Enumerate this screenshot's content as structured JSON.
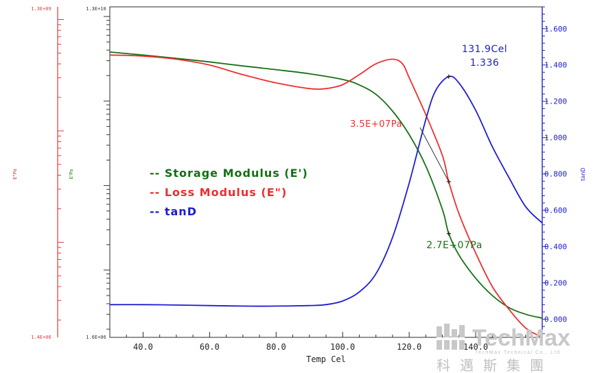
{
  "colors": {
    "storage": "#137113",
    "loss": "#ee2d2d",
    "tan": "#1b1bd0",
    "storage_axis": "#1a8a1a",
    "loss_axis": "#e03a3a",
    "tan_axis": "#2020c8"
  },
  "chart_data": {
    "type": "line",
    "xlabel": "Temp Cel",
    "xlim": [
      30,
      160
    ],
    "x_ticks": [
      "40.0",
      "60.0",
      "80.0",
      "100.0",
      "120.0",
      "140.0"
    ],
    "axes": {
      "storage": {
        "label": "E'Pa",
        "top": "1.3E+10",
        "bottom": "1.6E+06",
        "scale": "log",
        "ylim": [
          1600000,
          13000000000
        ]
      },
      "loss": {
        "label": "E\"Pa",
        "top": "1.3E+09",
        "bottom": "1.4E+06",
        "scale": "log",
        "ylim": [
          1400000,
          1300000000
        ]
      },
      "tan": {
        "label": "tanD",
        "ylim": [
          -0.1,
          1.72
        ],
        "ticks": [
          "0.000",
          "0.200",
          "0.400",
          "0.600",
          "0.800",
          "1.000",
          "1.200",
          "1.400",
          "1.600"
        ]
      }
    },
    "legend": {
      "position": "left-middle",
      "items": [
        {
          "key": "storage",
          "text": "-- Storage Modulus (E')"
        },
        {
          "key": "loss",
          "text": "-- Loss Modulus (E\")"
        },
        {
          "key": "tan",
          "text": "-- tanD"
        }
      ]
    },
    "series": [
      {
        "name": "Storage Modulus (E')",
        "axis": "storage",
        "x": [
          30,
          40,
          50,
          60,
          70,
          80,
          90,
          100,
          105,
          110,
          115,
          120,
          125,
          130,
          131.9,
          135,
          140,
          145,
          150,
          155,
          160
        ],
        "y": [
          3800000000,
          3500000000,
          3200000000,
          2900000000,
          2600000000,
          2350000000,
          2100000000,
          1800000000,
          1550000000,
          1200000000,
          760000000,
          400000000,
          170000000,
          52000000,
          27000000,
          15000000,
          8000000,
          5000000,
          3600000,
          3000000,
          2700000
        ]
      },
      {
        "name": "Loss Modulus (E\")",
        "axis": "loss",
        "x": [
          30,
          40,
          50,
          60,
          70,
          80,
          90,
          95,
          100,
          105,
          110,
          115,
          118,
          120,
          125,
          130,
          131.9,
          135,
          140,
          145,
          150,
          155,
          160
        ],
        "y": [
          480000000,
          470000000,
          440000000,
          390000000,
          320000000,
          270000000,
          240000000,
          240000000,
          260000000,
          320000000,
          400000000,
          440000000,
          400000000,
          300000000,
          140000000,
          60000000,
          35000000,
          18000000,
          8000000,
          4000000,
          2500000,
          1700000,
          1400000
        ]
      },
      {
        "name": "tanD",
        "axis": "tan",
        "x": [
          30,
          40,
          50,
          60,
          70,
          80,
          90,
          95,
          100,
          105,
          110,
          115,
          120,
          125,
          128,
          131.9,
          135,
          140,
          145,
          150,
          155,
          160
        ],
        "y": [
          0.08,
          0.08,
          0.078,
          0.075,
          0.072,
          0.072,
          0.075,
          0.08,
          0.1,
          0.15,
          0.25,
          0.45,
          0.75,
          1.1,
          1.26,
          1.336,
          1.3,
          1.15,
          0.95,
          0.78,
          0.62,
          0.53
        ]
      }
    ],
    "annotations": [
      {
        "series": "tan",
        "x": 131.9,
        "y": 1.336,
        "lines": [
          "131.9Cel",
          "1.336"
        ]
      },
      {
        "series": "loss",
        "x": 131.9,
        "y": 35000000,
        "lines": [
          "3.5E+07Pa"
        ]
      },
      {
        "series": "storage",
        "x": 131.9,
        "y": 27000000,
        "lines": [
          "2.7E+07Pa"
        ]
      }
    ]
  },
  "watermark": {
    "brand": "TechMax",
    "subtitle": "TechMax Technical Co., Ltd",
    "chinese": "科邁斯集團"
  }
}
